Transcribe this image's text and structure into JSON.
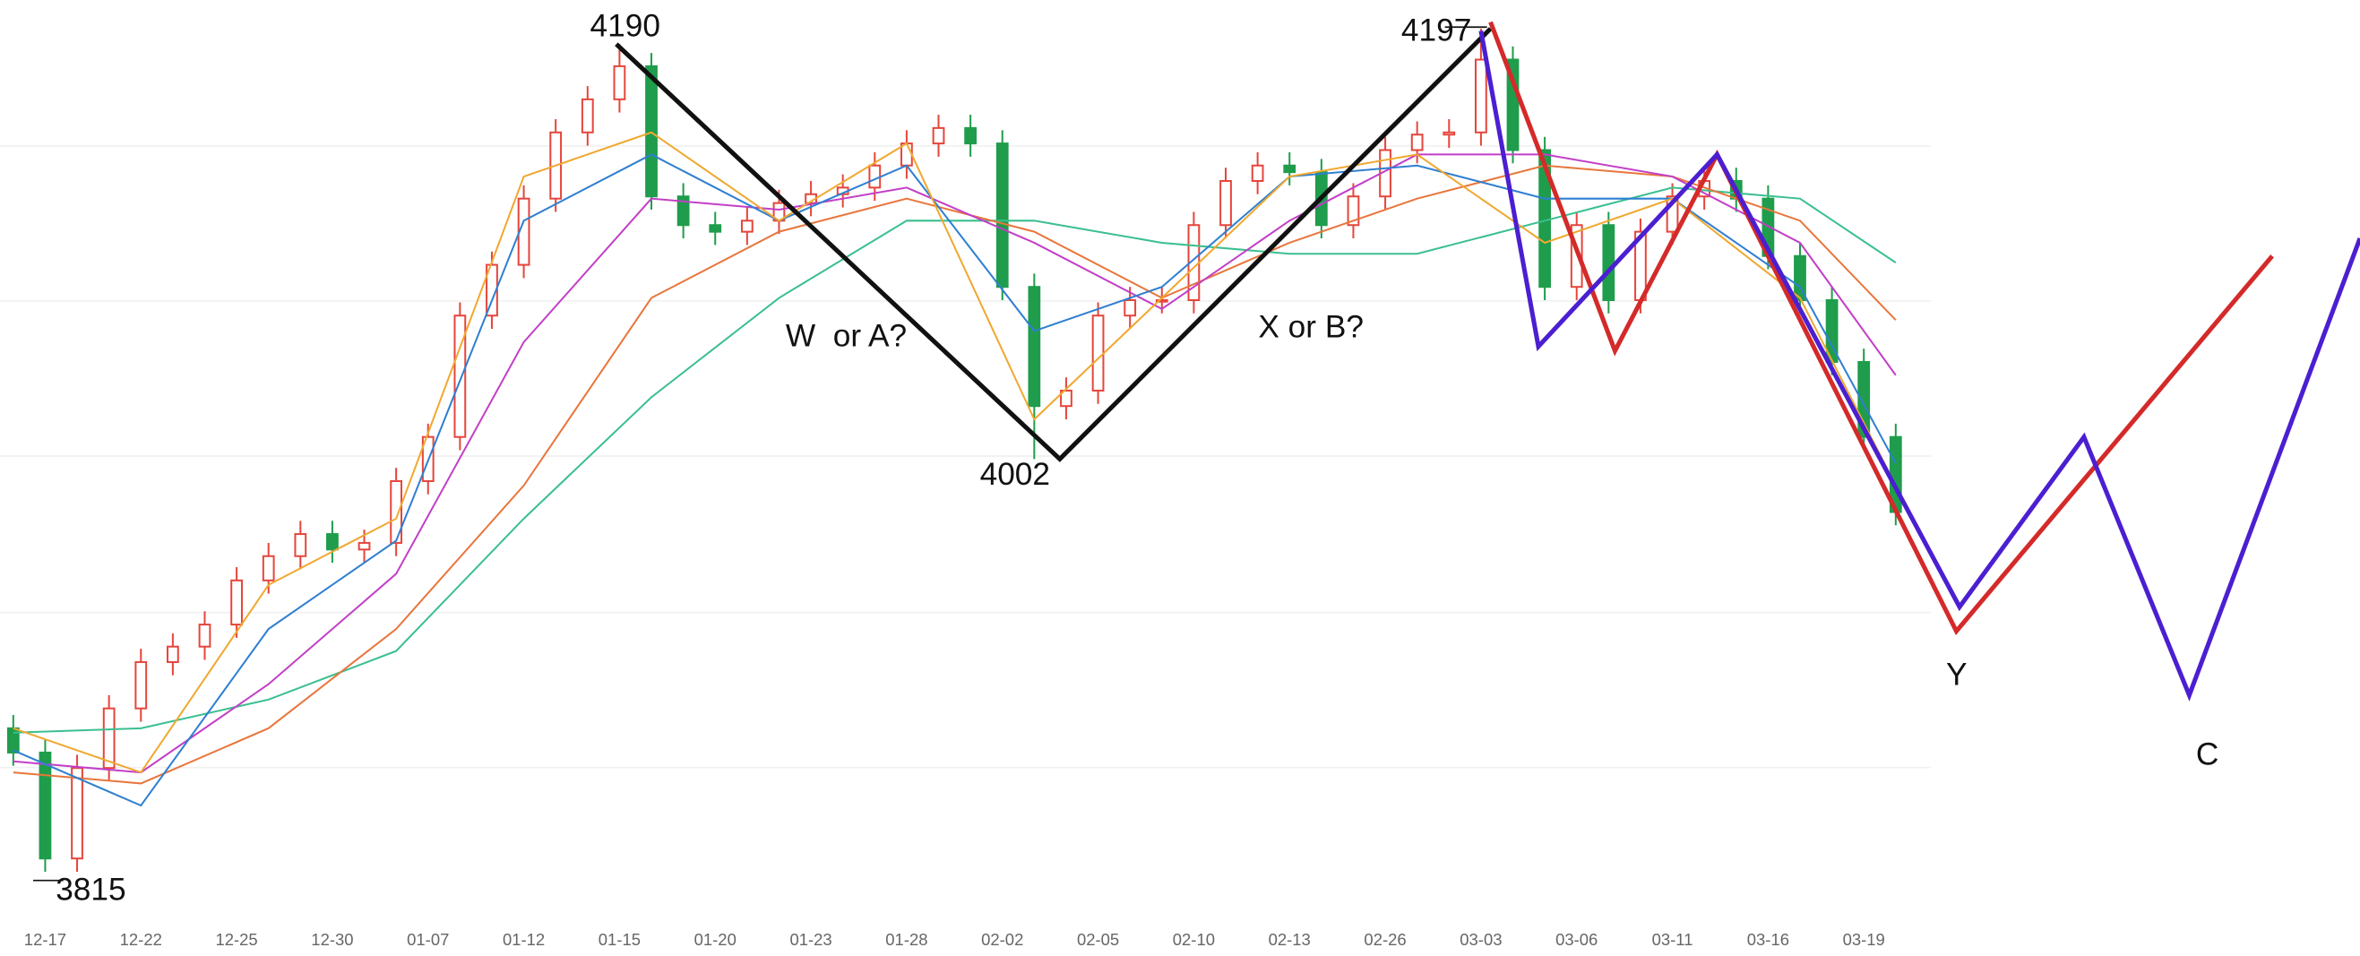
{
  "chart_data": {
    "type": "candlestick",
    "up_color": "#e5463c",
    "down_color": "#1f9d4c",
    "ylim": [
      3794,
      4210
    ],
    "xlim": [
      -0.415,
      73.55
    ],
    "xticks": [
      {
        "value": 1,
        "label": "12-17"
      },
      {
        "value": 4,
        "label": "12-22"
      },
      {
        "value": 7,
        "label": "12-25"
      },
      {
        "value": 10,
        "label": "12-30"
      },
      {
        "value": 13,
        "label": "01-07"
      },
      {
        "value": 16,
        "label": "01-12"
      },
      {
        "value": 19,
        "label": "01-15"
      },
      {
        "value": 22,
        "label": "01-20"
      },
      {
        "value": 25,
        "label": "01-23"
      },
      {
        "value": 28,
        "label": "01-28"
      },
      {
        "value": 31,
        "label": "02-02"
      },
      {
        "value": 34,
        "label": "02-05"
      },
      {
        "value": 37,
        "label": "02-10"
      },
      {
        "value": 40,
        "label": "02-13"
      },
      {
        "value": 43,
        "label": "02-26"
      },
      {
        "value": 46,
        "label": "03-03"
      },
      {
        "value": 49,
        "label": "03-06"
      },
      {
        "value": 52,
        "label": "03-11"
      },
      {
        "value": 55,
        "label": "03-16"
      },
      {
        "value": 58,
        "label": "03-19"
      }
    ],
    "ohlc": [
      [
        3880,
        3886,
        3863,
        3869
      ],
      [
        3869,
        3875,
        3815,
        3821
      ],
      [
        3821,
        3868,
        3815,
        3862
      ],
      [
        3862,
        3895,
        3856,
        3889
      ],
      [
        3889,
        3916,
        3883,
        3910
      ],
      [
        3910,
        3923,
        3904,
        3917
      ],
      [
        3917,
        3933,
        3911,
        3927
      ],
      [
        3927,
        3953,
        3921,
        3947
      ],
      [
        3947,
        3964,
        3941,
        3958
      ],
      [
        3958,
        3974,
        3952,
        3968
      ],
      [
        3968,
        3974,
        3955,
        3961
      ],
      [
        3961,
        3970,
        3955,
        3964
      ],
      [
        3964,
        3998,
        3958,
        3992
      ],
      [
        3992,
        4018,
        3986,
        4012
      ],
      [
        4012,
        4073,
        4006,
        4067
      ],
      [
        4067,
        4096,
        4061,
        4090
      ],
      [
        4090,
        4126,
        4084,
        4120
      ],
      [
        4120,
        4156,
        4114,
        4150
      ],
      [
        4150,
        4171,
        4144,
        4165
      ],
      [
        4165,
        4190,
        4159,
        4180
      ],
      [
        4180,
        4186,
        4115,
        4121
      ],
      [
        4121,
        4127,
        4102,
        4108
      ],
      [
        4108,
        4114,
        4099,
        4105
      ],
      [
        4105,
        4116,
        4099,
        4110
      ],
      [
        4110,
        4124,
        4104,
        4118
      ],
      [
        4118,
        4128,
        4112,
        4122
      ],
      [
        4122,
        4131,
        4116,
        4125
      ],
      [
        4125,
        4141,
        4119,
        4135
      ],
      [
        4135,
        4151,
        4129,
        4145
      ],
      [
        4145,
        4158,
        4139,
        4152
      ],
      [
        4152,
        4158,
        4139,
        4145
      ],
      [
        4145,
        4151,
        4074,
        4080
      ],
      [
        4080,
        4086,
        4002,
        4026
      ],
      [
        4026,
        4039,
        4020,
        4033
      ],
      [
        4033,
        4073,
        4027,
        4067
      ],
      [
        4067,
        4080,
        4061,
        4074
      ],
      [
        4074,
        4080,
        4068,
        4074
      ],
      [
        4074,
        4114,
        4068,
        4108
      ],
      [
        4108,
        4134,
        4102,
        4128
      ],
      [
        4128,
        4141,
        4122,
        4135
      ],
      [
        4135,
        4141,
        4126,
        4132
      ],
      [
        4132,
        4138,
        4102,
        4108
      ],
      [
        4108,
        4127,
        4102,
        4121
      ],
      [
        4121,
        4148,
        4115,
        4142
      ],
      [
        4142,
        4155,
        4136,
        4149
      ],
      [
        4149,
        4156,
        4143,
        4150
      ],
      [
        4150,
        4197,
        4144,
        4183
      ],
      [
        4183,
        4189,
        4136,
        4142
      ],
      [
        4142,
        4148,
        4074,
        4080
      ],
      [
        4080,
        4114,
        4074,
        4108
      ],
      [
        4108,
        4114,
        4068,
        4074
      ],
      [
        4074,
        4111,
        4068,
        4105
      ],
      [
        4105,
        4127,
        4099,
        4121
      ],
      [
        4121,
        4134,
        4115,
        4128
      ],
      [
        4128,
        4134,
        4114,
        4120
      ],
      [
        4120,
        4126,
        4088,
        4094
      ],
      [
        4094,
        4100,
        4068,
        4074
      ],
      [
        4074,
        4080,
        4040,
        4046
      ],
      [
        4046,
        4052,
        4006,
        4012
      ],
      [
        4012,
        4018,
        3972,
        3978
      ]
    ],
    "ma_lines": [
      {
        "color": "#3bbf8f",
        "x": [
          0,
          4,
          8,
          12,
          16,
          20,
          24,
          28,
          32,
          36,
          40,
          44,
          48,
          52,
          56,
          59
        ],
        "values": [
          3878,
          3880,
          3893,
          3915,
          3975,
          4030,
          4075,
          4110,
          4110,
          4100,
          4095,
          4095,
          4110,
          4125,
          4120,
          4091
        ]
      },
      {
        "color": "#e8763c",
        "x": [
          0,
          4,
          8,
          12,
          16,
          20,
          24,
          28,
          32,
          36,
          40,
          44,
          48,
          52,
          56,
          59
        ],
        "values": [
          3860,
          3855,
          3880,
          3925,
          3990,
          4075,
          4105,
          4120,
          4105,
          4075,
          4100,
          4120,
          4135,
          4130,
          4110,
          4065
        ]
      },
      {
        "color": "#c23fc7",
        "x": [
          0,
          4,
          8,
          12,
          16,
          20,
          24,
          28,
          32,
          36,
          40,
          44,
          48,
          52,
          56,
          59
        ],
        "values": [
          3865,
          3860,
          3900,
          3950,
          4055,
          4120,
          4115,
          4125,
          4100,
          4070,
          4110,
          4140,
          4140,
          4130,
          4100,
          4040
        ]
      },
      {
        "color": "#2f7fd1",
        "x": [
          0,
          4,
          8,
          12,
          16,
          20,
          24,
          28,
          32,
          36,
          40,
          44,
          48,
          52,
          56,
          59
        ],
        "values": [
          3870,
          3845,
          3925,
          3965,
          4110,
          4140,
          4110,
          4135,
          4060,
          4080,
          4130,
          4135,
          4120,
          4120,
          4080,
          4000
        ]
      },
      {
        "color": "#f0a830",
        "x": [
          0,
          4,
          8,
          12,
          16,
          20,
          24,
          28,
          32,
          36,
          40,
          44,
          48,
          52,
          56,
          59
        ],
        "values": [
          3880,
          3860,
          3945,
          3975,
          4130,
          4150,
          4110,
          4145,
          4020,
          4075,
          4130,
          4140,
          4100,
          4120,
          4075,
          3990
        ]
      }
    ],
    "wave_paths": [
      {
        "color": "#111111",
        "x": [
          18.9,
          32.8,
          46.3
        ],
        "y": [
          4190,
          4002,
          4197
        ]
      },
      {
        "color": "#d42a2a",
        "x": [
          46.3,
          50.2,
          53.4,
          60.9,
          70.8
        ],
        "y": [
          4200,
          4051,
          4140,
          3924,
          4094
        ]
      },
      {
        "color": "#4b1fd1",
        "x": [
          46.0,
          47.8,
          53.4,
          61.0,
          64.9,
          68.2,
          73.55
        ],
        "y": [
          4196,
          4053,
          4140,
          3935,
          4012,
          3895,
          4102
        ]
      }
    ],
    "annotations": [
      {
        "text": "4190"
      },
      {
        "text": "4002"
      },
      {
        "text": "4197"
      },
      {
        "text": "3815"
      },
      {
        "text": "W  or A?"
      },
      {
        "text": "X or B?"
      },
      {
        "text": "Y",
        "color": "#d42a2a"
      },
      {
        "text": "C",
        "color": "#4b1fd1"
      }
    ]
  }
}
